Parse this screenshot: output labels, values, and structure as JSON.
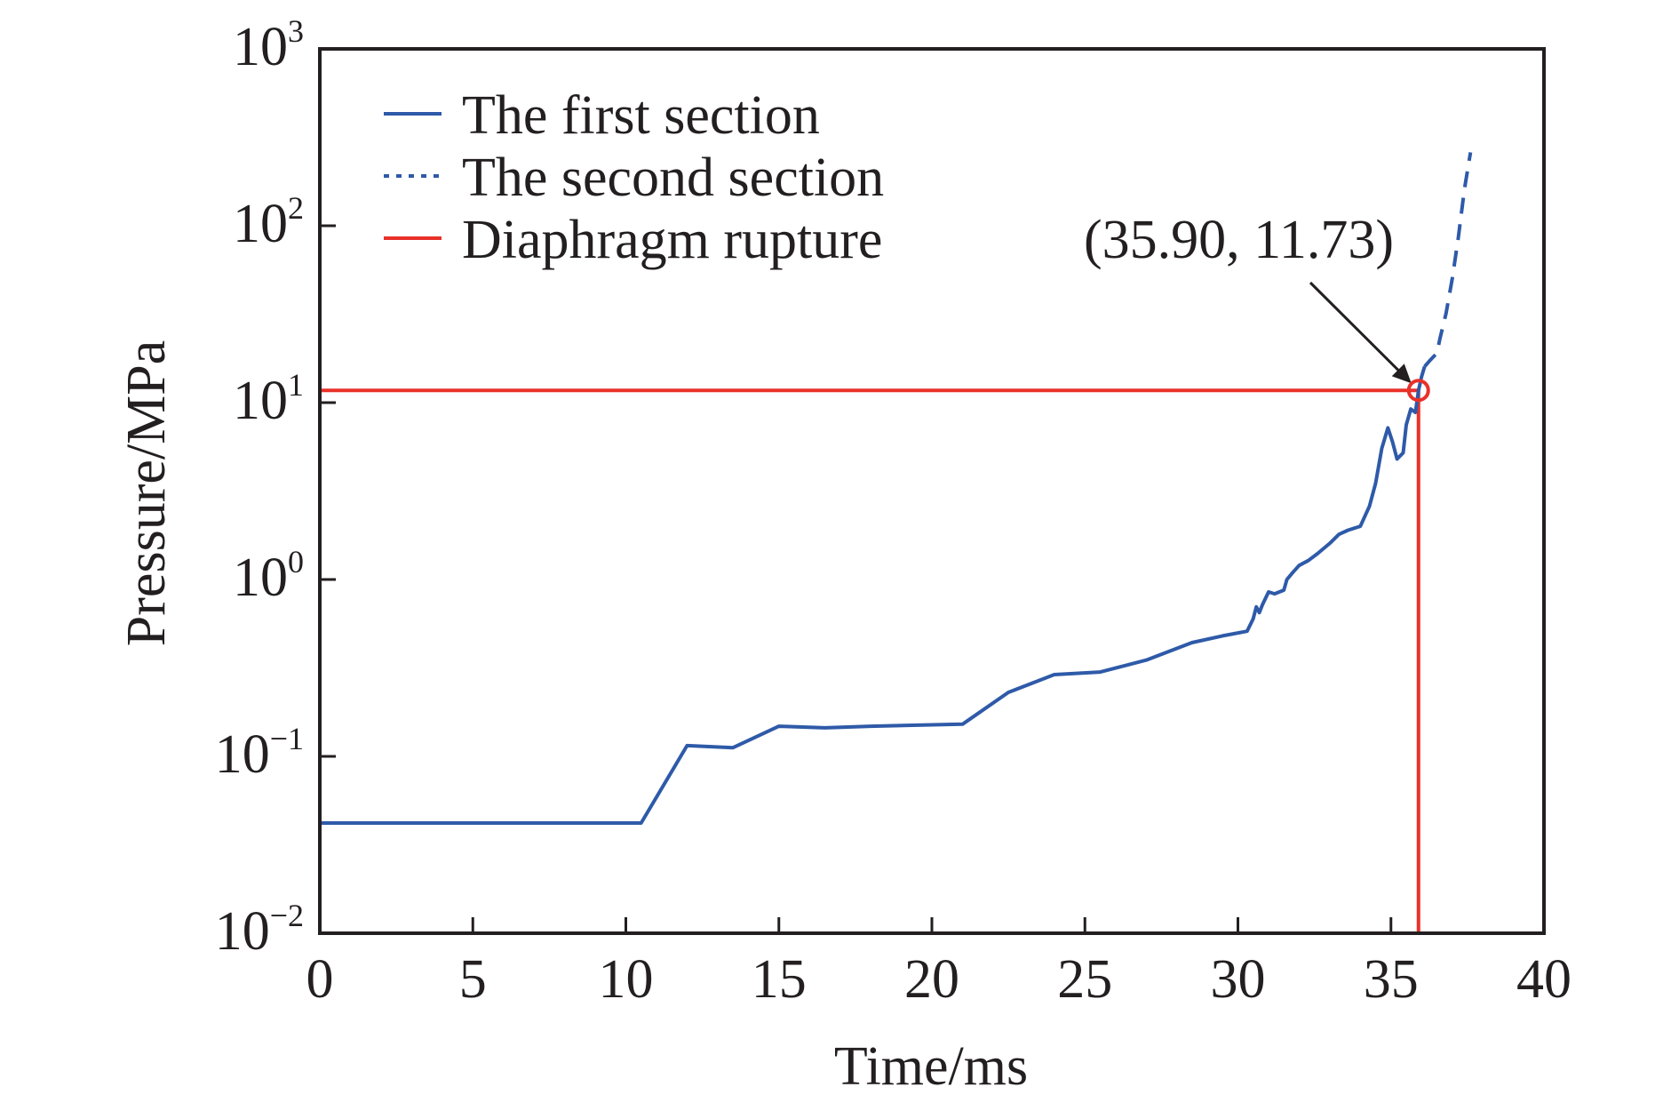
{
  "chart_data": {
    "type": "line",
    "xlabel": "Time/ms",
    "ylabel": "Pressure/MPa",
    "x_scale": "linear",
    "y_scale": "log",
    "xlim": [
      0,
      40
    ],
    "ylim": [
      0.01,
      1000
    ],
    "x_ticks": [
      0,
      5,
      10,
      15,
      20,
      25,
      30,
      35,
      40
    ],
    "x_tick_labels": [
      "0",
      "5",
      "10",
      "15",
      "20",
      "25",
      "30",
      "35",
      "40"
    ],
    "y_ticks": [
      0.01,
      0.1,
      1,
      10,
      100,
      1000
    ],
    "y_tick_labels": [
      {
        "base": "10",
        "exp": "−2"
      },
      {
        "base": "10",
        "exp": "−1"
      },
      {
        "base": "10",
        "exp": "0"
      },
      {
        "base": "10",
        "exp": "1"
      },
      {
        "base": "10",
        "exp": "2"
      },
      {
        "base": "10",
        "exp": "3"
      }
    ],
    "grid": false,
    "legend_position": "top-left",
    "series": [
      {
        "name": "The first section",
        "style": "solid",
        "color": "#2e5aa8",
        "x": [
          0,
          10.5,
          12,
          13.5,
          15,
          16.5,
          18,
          21,
          22.5,
          24,
          25.5,
          27,
          28.5,
          29.5,
          30.3,
          30.5,
          30.6,
          30.7,
          30.8,
          31,
          31.2,
          31.5,
          31.6,
          31.8,
          32,
          32.3,
          32.6,
          33,
          33.3,
          33.6,
          34,
          34.3,
          34.5,
          34.7,
          34.9,
          35.05,
          35.2,
          35.4,
          35.5,
          35.65,
          35.8,
          35.9,
          36.0,
          36.1
        ],
        "y": [
          0.042,
          0.042,
          0.115,
          0.112,
          0.148,
          0.145,
          0.148,
          0.152,
          0.23,
          0.29,
          0.3,
          0.35,
          0.44,
          0.48,
          0.51,
          0.6,
          0.7,
          0.65,
          0.72,
          0.85,
          0.83,
          0.87,
          1.0,
          1.1,
          1.2,
          1.28,
          1.4,
          1.6,
          1.8,
          1.9,
          2.0,
          2.6,
          3.5,
          5.5,
          7.2,
          6.0,
          4.8,
          5.2,
          7.5,
          9.2,
          8.8,
          11.73,
          14.0,
          16.0
        ]
      },
      {
        "name": "The second section",
        "style": "dashed",
        "color": "#2e5aa8",
        "x": [
          36.1,
          36.3,
          36.5,
          36.6,
          36.8,
          37.0,
          37.2,
          37.4,
          37.6
        ],
        "y": [
          16.0,
          17.5,
          19.0,
          23.0,
          32.0,
          50.0,
          85.0,
          160.0,
          260.0
        ]
      }
    ],
    "reference_lines": {
      "name": "Diaphragm rupture",
      "color": "#e8312a",
      "x": 35.9,
      "y": 11.73
    },
    "annotation": {
      "text": "(35.90, 11.73)",
      "point": [
        35.9,
        11.73
      ],
      "marker": "open-circle",
      "marker_color": "#e8312a"
    }
  }
}
